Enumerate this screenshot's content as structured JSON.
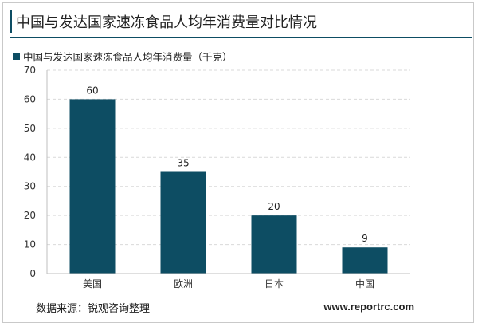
{
  "header": {
    "title": "中国与发达国家速冻食品人均年消费量对比情况"
  },
  "legend": {
    "label": "中国与发达国家速冻食品人均年消费量（千克）"
  },
  "footer": {
    "source": "数据来源：锐观咨询整理",
    "website": "www.reportrc.com"
  },
  "colors": {
    "bar": "#0d4d63",
    "grid": "#d9d9d9",
    "accent": "#0d4d63"
  },
  "chart_data": {
    "type": "bar",
    "title": "",
    "categories": [
      "美国",
      "欧洲",
      "日本",
      "中国"
    ],
    "series": [
      {
        "name": "中国与发达国家速冻食品人均年消费量（千克）",
        "values": [
          60,
          35,
          20,
          9
        ]
      }
    ],
    "ylim": [
      0,
      70
    ],
    "yticks": [
      0,
      10,
      20,
      30,
      40,
      50,
      60,
      70
    ],
    "grid": true,
    "grid_style": "dashed",
    "legend_position": "top-left"
  }
}
